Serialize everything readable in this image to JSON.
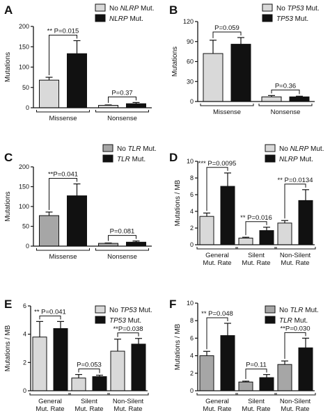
{
  "chart_data": [
    {
      "panel": "A",
      "type": "bar",
      "ylabel": "Mutations",
      "ylim": [
        0,
        200
      ],
      "yticks": [
        0,
        50,
        100,
        150,
        200
      ],
      "categories": [
        "Missense",
        "Nonsense"
      ],
      "legend": [
        {
          "prefix": "No ",
          "gene": "NLRP",
          "suffix": " Mut."
        },
        {
          "prefix": "",
          "gene": "NLRP",
          "suffix": " Mut."
        }
      ],
      "colors": [
        "#d9d9d9",
        "#111111"
      ],
      "series": [
        {
          "values": [
            68,
            6
          ],
          "errors": [
            7,
            1
          ]
        },
        {
          "values": [
            133,
            10
          ],
          "errors": [
            32,
            3
          ]
        }
      ],
      "annotations": [
        {
          "category": 0,
          "text": "** P=0.015"
        },
        {
          "category": 1,
          "text": "P=0.37"
        }
      ]
    },
    {
      "panel": "B",
      "type": "bar",
      "ylabel": "Mutations",
      "ylim": [
        0,
        120
      ],
      "yticks": [
        0,
        30,
        60,
        90,
        120
      ],
      "categories": [
        "Missense",
        "Nonsense"
      ],
      "legend": [
        {
          "prefix": "No ",
          "gene": "TP53",
          "suffix": " Mut."
        },
        {
          "prefix": "",
          "gene": "TP53",
          "suffix": " Mut."
        }
      ],
      "colors": [
        "#d9d9d9",
        "#111111"
      ],
      "series": [
        {
          "values": [
            72,
            7
          ],
          "errors": [
            20,
            2
          ]
        },
        {
          "values": [
            86,
            7
          ],
          "errors": [
            10,
            1
          ]
        }
      ],
      "annotations": [
        {
          "category": 0,
          "text": "P=0.059"
        },
        {
          "category": 1,
          "text": "P=0.36"
        }
      ]
    },
    {
      "panel": "C",
      "type": "bar",
      "ylabel": "Mutations",
      "ylim": [
        0,
        200
      ],
      "yticks": [
        0,
        50,
        100,
        150,
        200
      ],
      "categories": [
        "Missense",
        "Nonsense"
      ],
      "legend": [
        {
          "prefix": "No ",
          "gene": "TLR",
          "suffix": " Mut."
        },
        {
          "prefix": "",
          "gene": "TLR",
          "suffix": " Mut."
        }
      ],
      "colors": [
        "#a6a6a6",
        "#111111"
      ],
      "series": [
        {
          "values": [
            77,
            7
          ],
          "errors": [
            9,
            1
          ]
        },
        {
          "values": [
            127,
            10
          ],
          "errors": [
            30,
            3
          ]
        }
      ],
      "annotations": [
        {
          "category": 0,
          "text": "**P=0.041"
        },
        {
          "category": 1,
          "text": "P=0.081"
        }
      ]
    },
    {
      "panel": "D",
      "type": "bar",
      "ylabel": "Mutations / MB",
      "ylim": [
        0,
        10
      ],
      "yticks": [
        0,
        2,
        4,
        6,
        8,
        10
      ],
      "categories": [
        "General\nMut. Rate",
        "Silent\nMut. Rate",
        "Non-Silent\nMut. Rate"
      ],
      "legend": [
        {
          "prefix": "No ",
          "gene": "NLRP",
          "suffix": " Mut."
        },
        {
          "prefix": "",
          "gene": "NLRP",
          "suffix": " Mut."
        }
      ],
      "colors": [
        "#d9d9d9",
        "#111111"
      ],
      "series": [
        {
          "values": [
            3.4,
            0.8,
            2.6
          ],
          "errors": [
            0.4,
            0.1,
            0.3
          ]
        },
        {
          "values": [
            7.0,
            1.7,
            5.3
          ],
          "errors": [
            1.6,
            0.4,
            1.3
          ]
        }
      ],
      "annotations": [
        {
          "category": 0,
          "text": "*** P=0.0095"
        },
        {
          "category": 1,
          "text": "** P=0.016"
        },
        {
          "category": 2,
          "text": "** P=0.0134"
        }
      ]
    },
    {
      "panel": "E",
      "type": "bar",
      "ylabel": "Mutations / MB",
      "ylim": [
        0,
        6
      ],
      "yticks": [
        0,
        2,
        4,
        6
      ],
      "categories": [
        "General\nMut. Rate",
        "Silent\nMut. Rate",
        "Non-Silent\nMut. Rate"
      ],
      "legend": [
        {
          "prefix": "No ",
          "gene": "TP53",
          "suffix": " Mut."
        },
        {
          "prefix": "",
          "gene": "TP53",
          "suffix": " Mut."
        }
      ],
      "colors": [
        "#d9d9d9",
        "#111111"
      ],
      "series": [
        {
          "values": [
            3.8,
            0.9,
            2.8
          ],
          "errors": [
            1.1,
            0.25,
            0.85
          ]
        },
        {
          "values": [
            4.4,
            1.0,
            3.3
          ],
          "errors": [
            0.5,
            0.1,
            0.4
          ]
        }
      ],
      "annotations": [
        {
          "category": 0,
          "text": "** P=0.041"
        },
        {
          "category": 1,
          "text": "P=0.053"
        },
        {
          "category": 2,
          "text": "**P=0.038"
        }
      ]
    },
    {
      "panel": "F",
      "type": "bar",
      "ylabel": "Mutations / MB",
      "ylim": [
        0,
        10
      ],
      "yticks": [
        0,
        2,
        4,
        6,
        8,
        10
      ],
      "categories": [
        "General\nMut. Rate",
        "Silent\nMut. Rate",
        "Non-Silent\nMut. Rate"
      ],
      "legend": [
        {
          "prefix": "No ",
          "gene": "TLR",
          "suffix": " Mut."
        },
        {
          "prefix": "",
          "gene": "TLR",
          "suffix": " Mut."
        }
      ],
      "colors": [
        "#a6a6a6",
        "#111111"
      ],
      "series": [
        {
          "values": [
            4.0,
            1.0,
            3.0
          ],
          "errors": [
            0.5,
            0.1,
            0.4
          ]
        },
        {
          "values": [
            6.3,
            1.5,
            4.9
          ],
          "errors": [
            1.4,
            0.35,
            1.1
          ]
        }
      ],
      "annotations": [
        {
          "category": 0,
          "text": "** P=0.048"
        },
        {
          "category": 1,
          "text": "P=0.11"
        },
        {
          "category": 2,
          "text": "**P=0.030"
        }
      ]
    }
  ]
}
